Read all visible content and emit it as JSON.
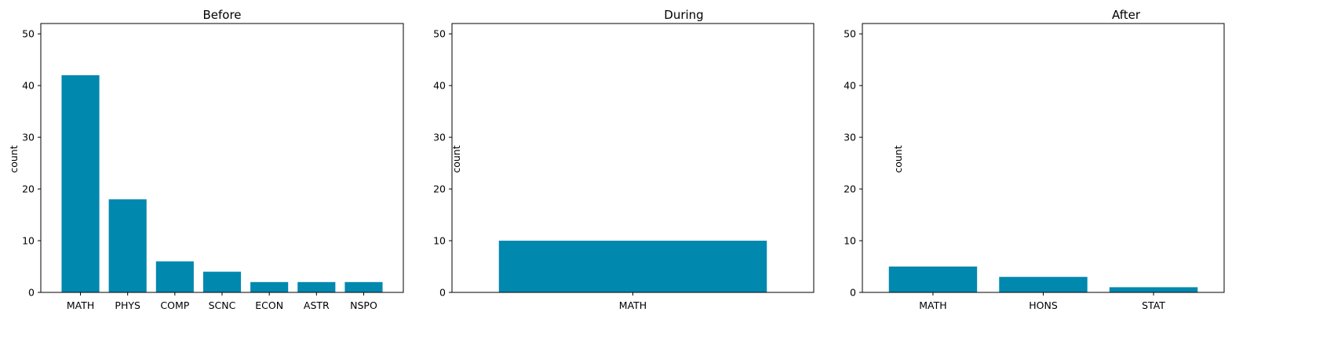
{
  "colors": {
    "bar": "#0088ae",
    "axis": "#000000",
    "background": "#ffffff"
  },
  "chart_data": [
    {
      "type": "bar",
      "title": "Before",
      "xlabel": "",
      "ylabel": "count",
      "ylim": [
        0,
        52
      ],
      "yticks": [
        0,
        10,
        20,
        30,
        40,
        50
      ],
      "grid": false,
      "categories": [
        "MATH",
        "PHYS",
        "COMP",
        "SCNC",
        "ECON",
        "ASTR",
        "NSPO"
      ],
      "values": [
        42,
        18,
        6,
        4,
        2,
        2,
        2
      ]
    },
    {
      "type": "bar",
      "title": "During",
      "xlabel": "",
      "ylabel": "count",
      "ylim": [
        0,
        52
      ],
      "yticks": [
        0,
        10,
        20,
        30,
        40,
        50
      ],
      "grid": false,
      "categories": [
        "MATH"
      ],
      "values": [
        10
      ]
    },
    {
      "type": "bar",
      "title": "After",
      "xlabel": "",
      "ylabel": "count",
      "ylim": [
        0,
        52
      ],
      "yticks": [
        0,
        10,
        20,
        30,
        40,
        50
      ],
      "grid": false,
      "categories": [
        "MATH",
        "HONS",
        "STAT"
      ],
      "values": [
        5,
        3,
        1
      ]
    }
  ]
}
